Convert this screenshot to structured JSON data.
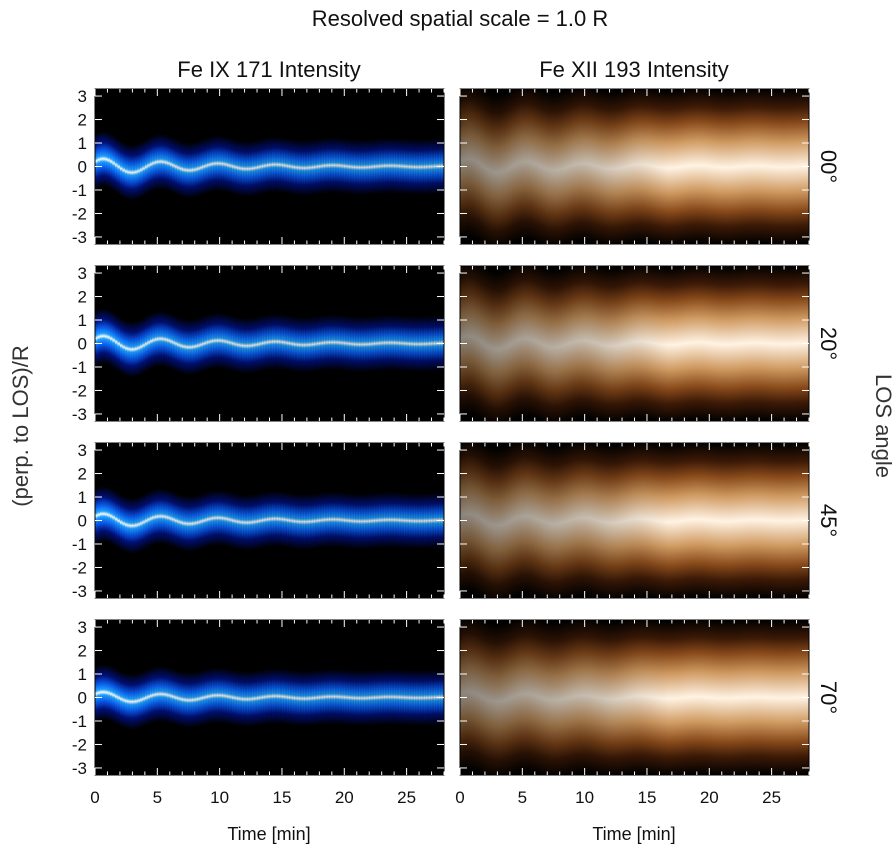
{
  "figure": {
    "title": "Resolved spatial scale = 1.0 R",
    "ylabel": "(perp. to LOS)/R",
    "right_label": "LOS angle"
  },
  "chart_data": {
    "type": "heatmap",
    "title": "Resolved spatial scale = 1.0 R",
    "xlabel": "Time [min]",
    "ylabel": "(perp. to LOS)/R",
    "xlim": [
      0,
      28
    ],
    "ylim": [
      -3.3,
      3.3
    ],
    "xticks": [
      0,
      5,
      10,
      15,
      20,
      25
    ],
    "yticks": [
      3,
      2,
      1,
      0,
      -1,
      -2,
      -3
    ],
    "columns": [
      {
        "title": "Fe IX 171 Intensity",
        "colormap": "blue",
        "colors": [
          "#000000",
          "#00107a",
          "#0a5ff0",
          "#1ea0ff",
          "#ffffff"
        ]
      },
      {
        "title": "Fe XII 193 Intensity",
        "colormap": "copper",
        "colors": [
          "#000000",
          "#3d1a06",
          "#8a4c1c",
          "#cf9a62",
          "#fff3e3"
        ]
      }
    ],
    "rows": [
      {
        "angle_label": "00°",
        "angle": 0
      },
      {
        "angle_label": "20°",
        "angle": 20
      },
      {
        "angle_label": "45°",
        "angle": 45
      },
      {
        "angle_label": "70°",
        "angle": 70
      }
    ],
    "oscillation": {
      "period_min": 4.6,
      "initial_amplitude_R": 0.35,
      "damping_time_min": 10
    }
  }
}
